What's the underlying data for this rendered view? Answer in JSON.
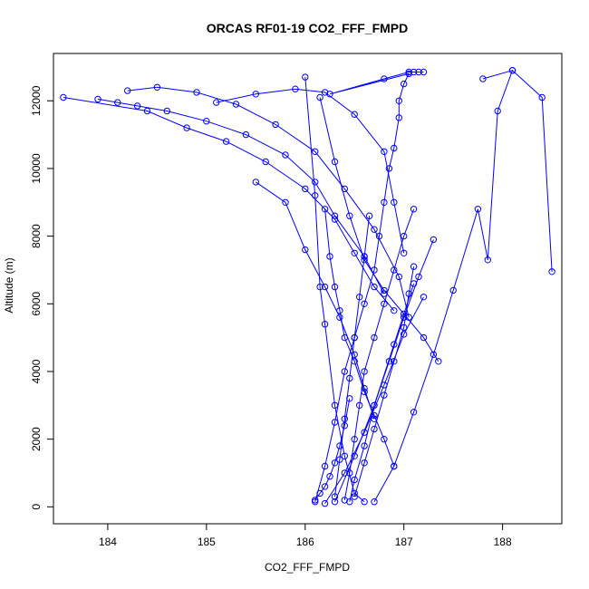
{
  "chart_data": {
    "type": "line",
    "title": "ORCAS RF01-19 CO2_FFF_FMPD",
    "xlabel": "CO2_FFF_FMPD",
    "ylabel": "Altitude (m)",
    "xlim": [
      183.45,
      188.6
    ],
    "ylim": [
      -500,
      13400
    ],
    "x_ticks": [
      184,
      185,
      186,
      187,
      188
    ],
    "y_ticks": [
      0,
      2000,
      4000,
      6000,
      8000,
      10000,
      12000
    ],
    "grid": false,
    "marker": "open-circle",
    "line_color": "#0000ff",
    "series": [
      {
        "x": [
          186.1,
          186.2,
          186.3,
          186.4,
          186.5,
          186.6,
          186.7,
          186.75,
          186.8,
          186.85,
          186.9,
          186.95,
          186.95,
          187.0,
          187.05,
          186.25,
          186.8,
          187.05,
          187.1,
          187.15,
          187.2
        ],
        "y": [
          150,
          1200,
          2500,
          4000,
          5000,
          6000,
          7000,
          8000,
          9000,
          10000,
          10600,
          11500,
          12000,
          12500,
          12800,
          12200,
          12650,
          12850,
          12850,
          12850,
          12850
        ]
      },
      {
        "x": [
          183.55,
          184.4,
          184.8,
          185.2,
          185.6,
          186.0,
          186.3,
          186.5,
          186.7,
          186.9
        ],
        "y": [
          12100,
          11700,
          11200,
          10800,
          10200,
          9400,
          8500,
          7500,
          6500,
          5800
        ]
      },
      {
        "x": [
          183.9,
          184.1,
          184.3,
          184.6,
          185.0,
          185.4,
          185.8,
          186.1,
          186.3,
          186.6,
          186.8
        ],
        "y": [
          12050,
          11950,
          11850,
          11700,
          11400,
          11000,
          10400,
          9600,
          8600,
          7400,
          6300
        ]
      },
      {
        "x": [
          184.2,
          184.5,
          184.9,
          185.3,
          185.7,
          186.1,
          186.4,
          186.7,
          186.95,
          187.05
        ],
        "y": [
          12300,
          12400,
          12250,
          11900,
          11300,
          10500,
          9400,
          8200,
          6800,
          5600
        ]
      },
      {
        "x": [
          185.1,
          185.5,
          185.9,
          186.2,
          186.5,
          186.8,
          186.9,
          187.0
        ],
        "y": [
          11950,
          12200,
          12350,
          12250,
          11600,
          10500,
          9000,
          7500
        ]
      },
      {
        "x": [
          185.5,
          185.8,
          186.0,
          186.2,
          186.35,
          186.5,
          186.6,
          186.7
        ],
        "y": [
          9600,
          9000,
          7600,
          6500,
          5600,
          4500,
          3500,
          2600
        ]
      },
      {
        "x": [
          186.0,
          186.1,
          186.15,
          186.2,
          186.3,
          186.4,
          186.5,
          186.6
        ],
        "y": [
          12700,
          9200,
          6500,
          5400,
          3000,
          1500,
          400,
          150
        ]
      },
      {
        "x": [
          186.15,
          186.3,
          186.45,
          186.6,
          186.8,
          187.0,
          187.2,
          187.35
        ],
        "y": [
          12100,
          10200,
          8600,
          7300,
          6400,
          5700,
          5000,
          4300
        ]
      },
      {
        "x": [
          186.2,
          186.25,
          186.3,
          186.35,
          186.4,
          186.5,
          186.6,
          186.7,
          186.8,
          186.9
        ],
        "y": [
          8800,
          7400,
          6500,
          5800,
          5000,
          4300,
          3400,
          2700,
          2000,
          1200
        ]
      },
      {
        "x": [
          186.3,
          186.35,
          186.4,
          186.45,
          186.5,
          186.55,
          186.6,
          186.65
        ],
        "y": [
          300,
          1400,
          2600,
          3800,
          5000,
          6200,
          7400,
          8600
        ]
      },
      {
        "x": [
          186.4,
          186.45,
          186.5,
          186.55,
          186.6,
          186.7,
          186.8,
          186.9,
          187.0,
          187.1
        ],
        "y": [
          200,
          1000,
          2000,
          3000,
          4000,
          5000,
          6000,
          7000,
          8000,
          8800
        ]
      },
      {
        "x": [
          186.45,
          186.5,
          186.6,
          186.7,
          186.85,
          187.0,
          187.15,
          187.3
        ],
        "y": [
          150,
          800,
          1800,
          3000,
          4300,
          5600,
          6800,
          7900
        ]
      },
      {
        "x": [
          186.7,
          186.9,
          187.1,
          187.3,
          187.5,
          187.75,
          187.85,
          187.95,
          188.1,
          188.4,
          188.5
        ],
        "y": [
          150,
          1200,
          2800,
          4500,
          6400,
          8800,
          7300,
          11700,
          12900,
          12100,
          6950
        ]
      },
      {
        "x": [
          187.8,
          188.1
        ],
        "y": [
          12650,
          12900
        ]
      },
      {
        "x": [
          186.1,
          186.15,
          186.2,
          186.25,
          186.3,
          186.35,
          186.4,
          186.45
        ],
        "y": [
          200,
          400,
          600,
          900,
          1300,
          1800,
          2400,
          3200
        ]
      },
      {
        "x": [
          186.5,
          186.6,
          186.7,
          186.8,
          186.9,
          187.0,
          187.05,
          187.1
        ],
        "y": [
          300,
          1300,
          2300,
          3300,
          4300,
          5300,
          6300,
          7100
        ]
      },
      {
        "x": [
          186.2,
          186.4,
          186.6,
          186.8,
          187.0,
          187.2
        ],
        "y": [
          100,
          1000,
          2200,
          3600,
          5100,
          6200
        ]
      },
      {
        "x": [
          186.3,
          186.5,
          186.7,
          186.9,
          187.1
        ],
        "y": [
          150,
          1500,
          3000,
          4800,
          6600
        ]
      }
    ]
  }
}
